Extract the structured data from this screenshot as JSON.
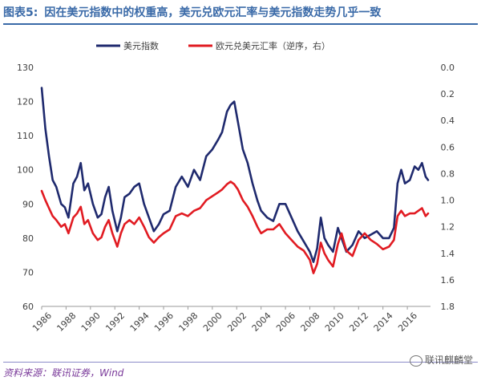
{
  "figure": {
    "label": "图表5:",
    "title": "因在美元指数中的权重高，美元兑欧元汇率与美元指数走势几乎一致",
    "source": "资料来源：联讯证券，Wind",
    "watermark": "联讯麒麟堂"
  },
  "chart_data": {
    "type": "line",
    "title": "",
    "xlabel": "",
    "ylabel": "",
    "legend_position": "top",
    "grid": false,
    "x_ticks": [
      "1986",
      "1988",
      "1990",
      "1992",
      "1994",
      "1996",
      "1998",
      "2000",
      "2002",
      "2004",
      "2006",
      "2008",
      "2010",
      "2012",
      "2014",
      "2016"
    ],
    "xlim": [
      1986,
      2017.9
    ],
    "y_left": {
      "lim": [
        60,
        130
      ],
      "ticks": [
        "60",
        "70",
        "80",
        "90",
        "100",
        "110",
        "120",
        "130"
      ]
    },
    "y_right": {
      "lim": [
        1.8,
        0.0
      ],
      "reversed": true,
      "ticks": [
        "0.0",
        "0.2",
        "0.4",
        "0.6",
        "0.8",
        "1.0",
        "1.2",
        "1.4",
        "1.6",
        "1.8"
      ]
    },
    "series": [
      {
        "name": "美元指数",
        "axis": "left",
        "color": "#1f2a6e",
        "x": [
          1986.0,
          1986.3,
          1986.6,
          1986.9,
          1987.2,
          1987.6,
          1987.9,
          1988.2,
          1988.6,
          1988.9,
          1989.2,
          1989.5,
          1989.8,
          1990.2,
          1990.6,
          1990.9,
          1991.2,
          1991.5,
          1991.8,
          1992.2,
          1992.5,
          1992.8,
          1993.2,
          1993.6,
          1994.0,
          1994.4,
          1994.8,
          1995.2,
          1995.6,
          1996.0,
          1996.5,
          1997.0,
          1997.5,
          1998.0,
          1998.5,
          1999.0,
          1999.5,
          2000.0,
          2000.5,
          2000.8,
          2001.2,
          2001.5,
          2001.8,
          2002.1,
          2002.5,
          2002.9,
          2003.3,
          2003.7,
          2004.0,
          2004.5,
          2005.0,
          2005.5,
          2006.0,
          2006.5,
          2007.0,
          2007.5,
          2008.0,
          2008.3,
          2008.6,
          2008.9,
          2009.2,
          2009.5,
          2009.9,
          2010.3,
          2010.6,
          2011.0,
          2011.5,
          2012.0,
          2012.5,
          2013.0,
          2013.5,
          2014.0,
          2014.5,
          2014.9,
          2015.2,
          2015.5,
          2015.8,
          2016.2,
          2016.6,
          2016.9,
          2017.2,
          2017.5,
          2017.7
        ],
        "values": [
          124,
          112,
          104,
          97,
          95,
          90,
          89,
          86,
          96,
          98,
          102,
          94,
          96,
          90,
          86,
          87,
          92,
          95,
          88,
          82,
          86,
          92,
          93,
          95,
          96,
          90,
          86,
          82,
          84,
          87,
          88,
          95,
          98,
          95,
          100,
          97,
          104,
          106,
          109,
          111,
          117,
          119,
          120,
          114,
          106,
          102,
          96,
          91,
          88,
          86,
          85,
          90,
          90,
          86,
          82,
          79,
          76,
          73,
          77,
          86,
          80,
          78,
          76,
          83,
          80,
          76,
          78,
          82,
          80,
          81,
          82,
          80,
          80,
          83,
          96,
          100,
          96,
          97,
          101,
          100,
          102,
          98,
          97
        ]
      },
      {
        "name": "欧元兑美元汇率（逆序，右）",
        "axis": "right",
        "color": "#e11b22",
        "x": [
          1986.0,
          1986.3,
          1986.6,
          1986.9,
          1987.2,
          1987.6,
          1987.9,
          1988.2,
          1988.6,
          1988.9,
          1989.2,
          1989.5,
          1989.8,
          1990.2,
          1990.6,
          1990.9,
          1991.2,
          1991.5,
          1991.8,
          1992.2,
          1992.5,
          1992.8,
          1993.2,
          1993.6,
          1994.0,
          1994.4,
          1994.8,
          1995.2,
          1995.6,
          1996.0,
          1996.5,
          1997.0,
          1997.5,
          1998.0,
          1998.5,
          1999.0,
          1999.5,
          2000.0,
          2000.5,
          2000.8,
          2001.2,
          2001.5,
          2001.8,
          2002.1,
          2002.5,
          2002.9,
          2003.3,
          2003.7,
          2004.0,
          2004.5,
          2005.0,
          2005.5,
          2006.0,
          2006.5,
          2007.0,
          2007.5,
          2008.0,
          2008.3,
          2008.6,
          2008.9,
          2009.2,
          2009.5,
          2009.9,
          2010.3,
          2010.6,
          2011.0,
          2011.5,
          2012.0,
          2012.5,
          2013.0,
          2013.5,
          2014.0,
          2014.5,
          2014.9,
          2015.2,
          2015.5,
          2015.8,
          2016.2,
          2016.6,
          2016.9,
          2017.2,
          2017.5,
          2017.7
        ],
        "values": [
          0.93,
          1.0,
          1.06,
          1.12,
          1.15,
          1.2,
          1.18,
          1.25,
          1.13,
          1.1,
          1.05,
          1.18,
          1.15,
          1.25,
          1.3,
          1.28,
          1.2,
          1.15,
          1.25,
          1.35,
          1.25,
          1.18,
          1.15,
          1.18,
          1.13,
          1.2,
          1.28,
          1.32,
          1.28,
          1.25,
          1.22,
          1.12,
          1.1,
          1.12,
          1.08,
          1.06,
          1.0,
          0.97,
          0.94,
          0.92,
          0.88,
          0.86,
          0.88,
          0.92,
          1.0,
          1.05,
          1.12,
          1.2,
          1.25,
          1.22,
          1.22,
          1.18,
          1.25,
          1.3,
          1.35,
          1.38,
          1.45,
          1.55,
          1.48,
          1.32,
          1.4,
          1.45,
          1.5,
          1.33,
          1.25,
          1.38,
          1.42,
          1.3,
          1.25,
          1.3,
          1.33,
          1.37,
          1.35,
          1.3,
          1.12,
          1.08,
          1.12,
          1.1,
          1.1,
          1.08,
          1.06,
          1.12,
          1.1
        ]
      }
    ]
  }
}
